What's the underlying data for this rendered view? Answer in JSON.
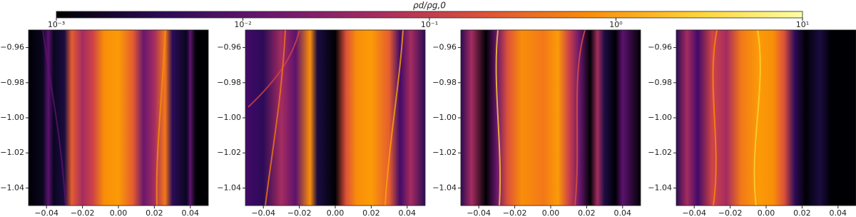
{
  "colorbar": {
    "label": "ρd/ρg,0",
    "log": true,
    "lim": [
      0.001,
      10
    ],
    "ticks": [
      {
        "value": 0.001,
        "label": "10⁻³"
      },
      {
        "value": 0.01,
        "label": "10⁻²"
      },
      {
        "value": 0.1,
        "label": "10⁻¹"
      },
      {
        "value": 1,
        "label": "10⁰"
      },
      {
        "value": 10,
        "label": "10¹"
      }
    ],
    "colors": [
      "#000004",
      "#2c0b57",
      "#6a176e",
      "#a52c60",
      "#dd513a",
      "#f98e09",
      "#fcd338",
      "#fcffa4"
    ]
  },
  "chart_data": [
    {
      "type": "heatmap",
      "xlim": [
        -0.05,
        0.05
      ],
      "ylim": [
        -1.05,
        -0.95
      ],
      "xticks": [
        {
          "value": -0.04,
          "label": "−0.04"
        },
        {
          "value": -0.02,
          "label": "−0.02"
        },
        {
          "value": 0,
          "label": "0.00"
        },
        {
          "value": 0.02,
          "label": "0.02"
        },
        {
          "value": 0.04,
          "label": "0.04"
        }
      ],
      "yticks": [
        {
          "value": -0.96,
          "label": "−0.96"
        },
        {
          "value": -0.98,
          "label": "−0.98"
        },
        {
          "value": -1.0,
          "label": "−1.00"
        },
        {
          "value": -1.02,
          "label": "−1.02"
        },
        {
          "value": -1.04,
          "label": "−1.04"
        }
      ]
    },
    {
      "type": "heatmap",
      "xlim": [
        -0.05,
        0.05
      ],
      "ylim": [
        -1.05,
        -0.95
      ],
      "xticks": [
        {
          "value": -0.04,
          "label": "−0.04"
        },
        {
          "value": -0.02,
          "label": "−0.02"
        },
        {
          "value": 0,
          "label": "0.00"
        },
        {
          "value": 0.02,
          "label": "0.02"
        },
        {
          "value": 0.04,
          "label": "0.04"
        }
      ],
      "yticks": [
        {
          "value": -0.96,
          "label": "−0.96"
        },
        {
          "value": -0.98,
          "label": "−0.98"
        },
        {
          "value": -1.0,
          "label": "−1.00"
        },
        {
          "value": -1.02,
          "label": "−1.02"
        },
        {
          "value": -1.04,
          "label": "−1.04"
        }
      ]
    },
    {
      "type": "heatmap",
      "xlim": [
        -0.05,
        0.05
      ],
      "ylim": [
        -1.05,
        -0.95
      ],
      "xticks": [
        {
          "value": -0.04,
          "label": "−0.04"
        },
        {
          "value": -0.02,
          "label": "−0.02"
        },
        {
          "value": 0,
          "label": "0.00"
        },
        {
          "value": 0.02,
          "label": "0.02"
        },
        {
          "value": 0.04,
          "label": "0.04"
        }
      ],
      "yticks": [
        {
          "value": -0.96,
          "label": "−0.96"
        },
        {
          "value": -0.98,
          "label": "−0.98"
        },
        {
          "value": -1.0,
          "label": "−1.00"
        },
        {
          "value": -1.02,
          "label": "−1.02"
        },
        {
          "value": -1.04,
          "label": "−1.04"
        }
      ]
    },
    {
      "type": "heatmap",
      "xlim": [
        -0.05,
        0.05
      ],
      "ylim": [
        -1.05,
        -0.95
      ],
      "xticks": [
        {
          "value": -0.04,
          "label": "−0.04"
        },
        {
          "value": -0.02,
          "label": "−0.02"
        },
        {
          "value": 0,
          "label": "0.00"
        },
        {
          "value": 0.02,
          "label": "0.02"
        },
        {
          "value": 0.04,
          "label": "0.04"
        }
      ],
      "yticks": [
        {
          "value": -0.96,
          "label": "−0.96"
        },
        {
          "value": -0.98,
          "label": "−0.98"
        },
        {
          "value": -1.0,
          "label": "−1.00"
        },
        {
          "value": -1.02,
          "label": "−1.02"
        },
        {
          "value": -1.04,
          "label": "−1.04"
        }
      ]
    }
  ]
}
